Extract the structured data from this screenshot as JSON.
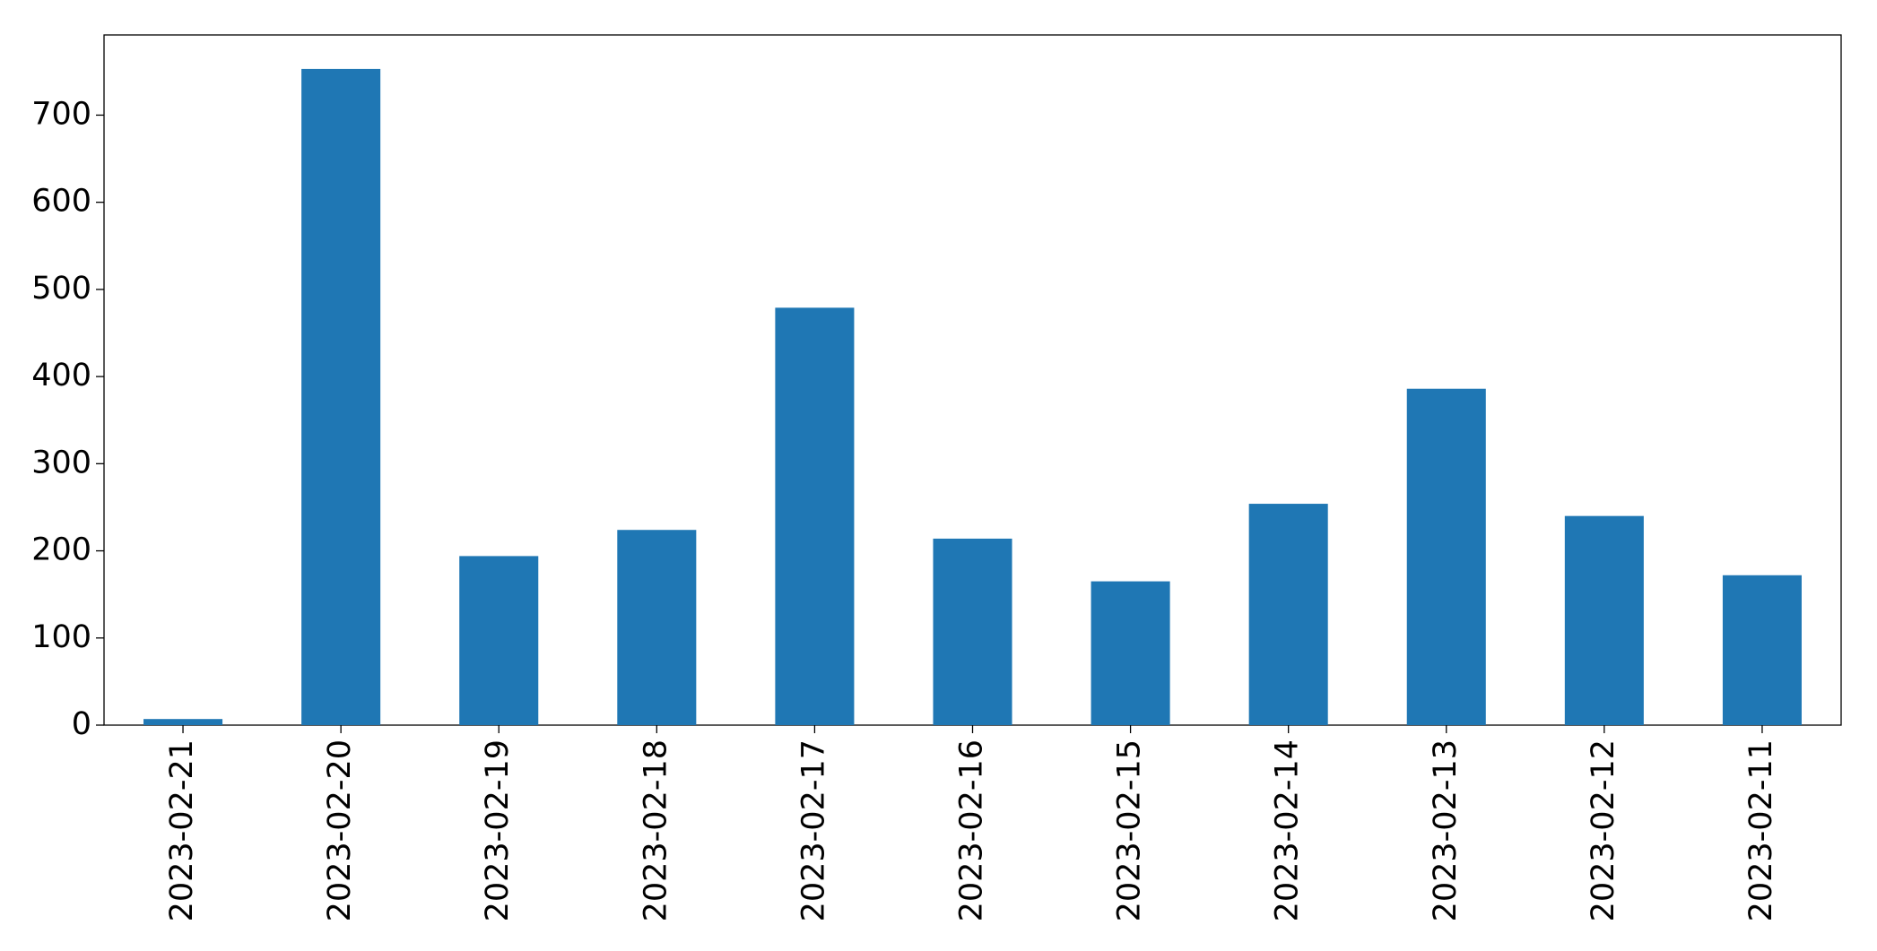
{
  "chart_data": {
    "type": "bar",
    "categories": [
      "2023-02-21",
      "2023-02-20",
      "2023-02-19",
      "2023-02-18",
      "2023-02-17",
      "2023-02-16",
      "2023-02-15",
      "2023-02-14",
      "2023-02-13",
      "2023-02-12",
      "2023-02-11"
    ],
    "values": [
      7,
      753,
      194,
      224,
      479,
      214,
      165,
      254,
      386,
      240,
      172
    ],
    "color": "#1f77b4",
    "ylim": [
      0,
      792
    ],
    "yticks": [
      0,
      100,
      200,
      300,
      400,
      500,
      600,
      700
    ],
    "grid": false
  }
}
